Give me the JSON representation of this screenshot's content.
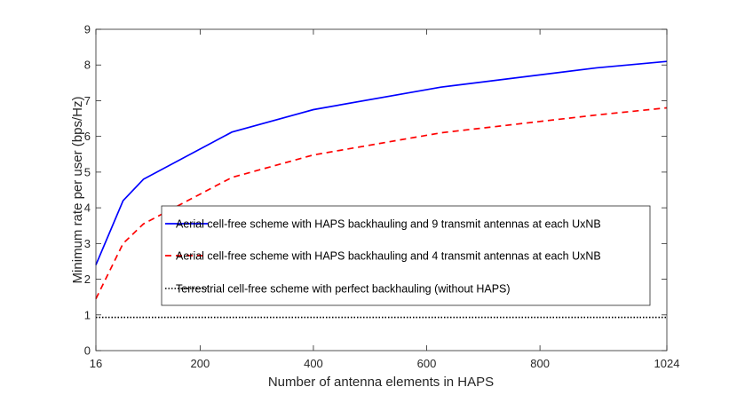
{
  "chart_data": {
    "type": "line",
    "title": "",
    "xlabel": "Number of antenna elements in HAPS",
    "ylabel": "Minimum rate per user (bps/Hz)",
    "xlim": [
      16,
      1024
    ],
    "ylim": [
      0,
      9
    ],
    "xticks": [
      16,
      200,
      400,
      600,
      800,
      1024
    ],
    "yticks": [
      0,
      1,
      2,
      3,
      4,
      5,
      6,
      7,
      8,
      9
    ],
    "grid": false,
    "legend_position": "center",
    "series": [
      {
        "name": "Aerial cell-free scheme with HAPS backhauling and 9 transmit antennas at each UxNB",
        "color": "#0000ff",
        "style": "solid",
        "x": [
          16,
          64,
          100,
          256,
          400,
          625,
          900,
          1024
        ],
        "y": [
          2.4,
          4.2,
          4.8,
          6.12,
          6.75,
          7.38,
          7.92,
          8.1
        ]
      },
      {
        "name": "Aerial cell-free scheme with HAPS backhauling and 4 transmit antennas at each UxNB",
        "color": "#ff0000",
        "style": "dashed",
        "x": [
          16,
          64,
          100,
          256,
          400,
          625,
          900,
          1024
        ],
        "y": [
          1.45,
          3.0,
          3.55,
          4.85,
          5.48,
          6.1,
          6.6,
          6.8
        ]
      },
      {
        "name": "Terrestrial cell-free scheme with perfect backhauling (without HAPS)",
        "color": "#000000",
        "style": "dotted",
        "x": [
          16,
          1024
        ],
        "y": [
          0.93,
          0.93
        ]
      }
    ]
  }
}
